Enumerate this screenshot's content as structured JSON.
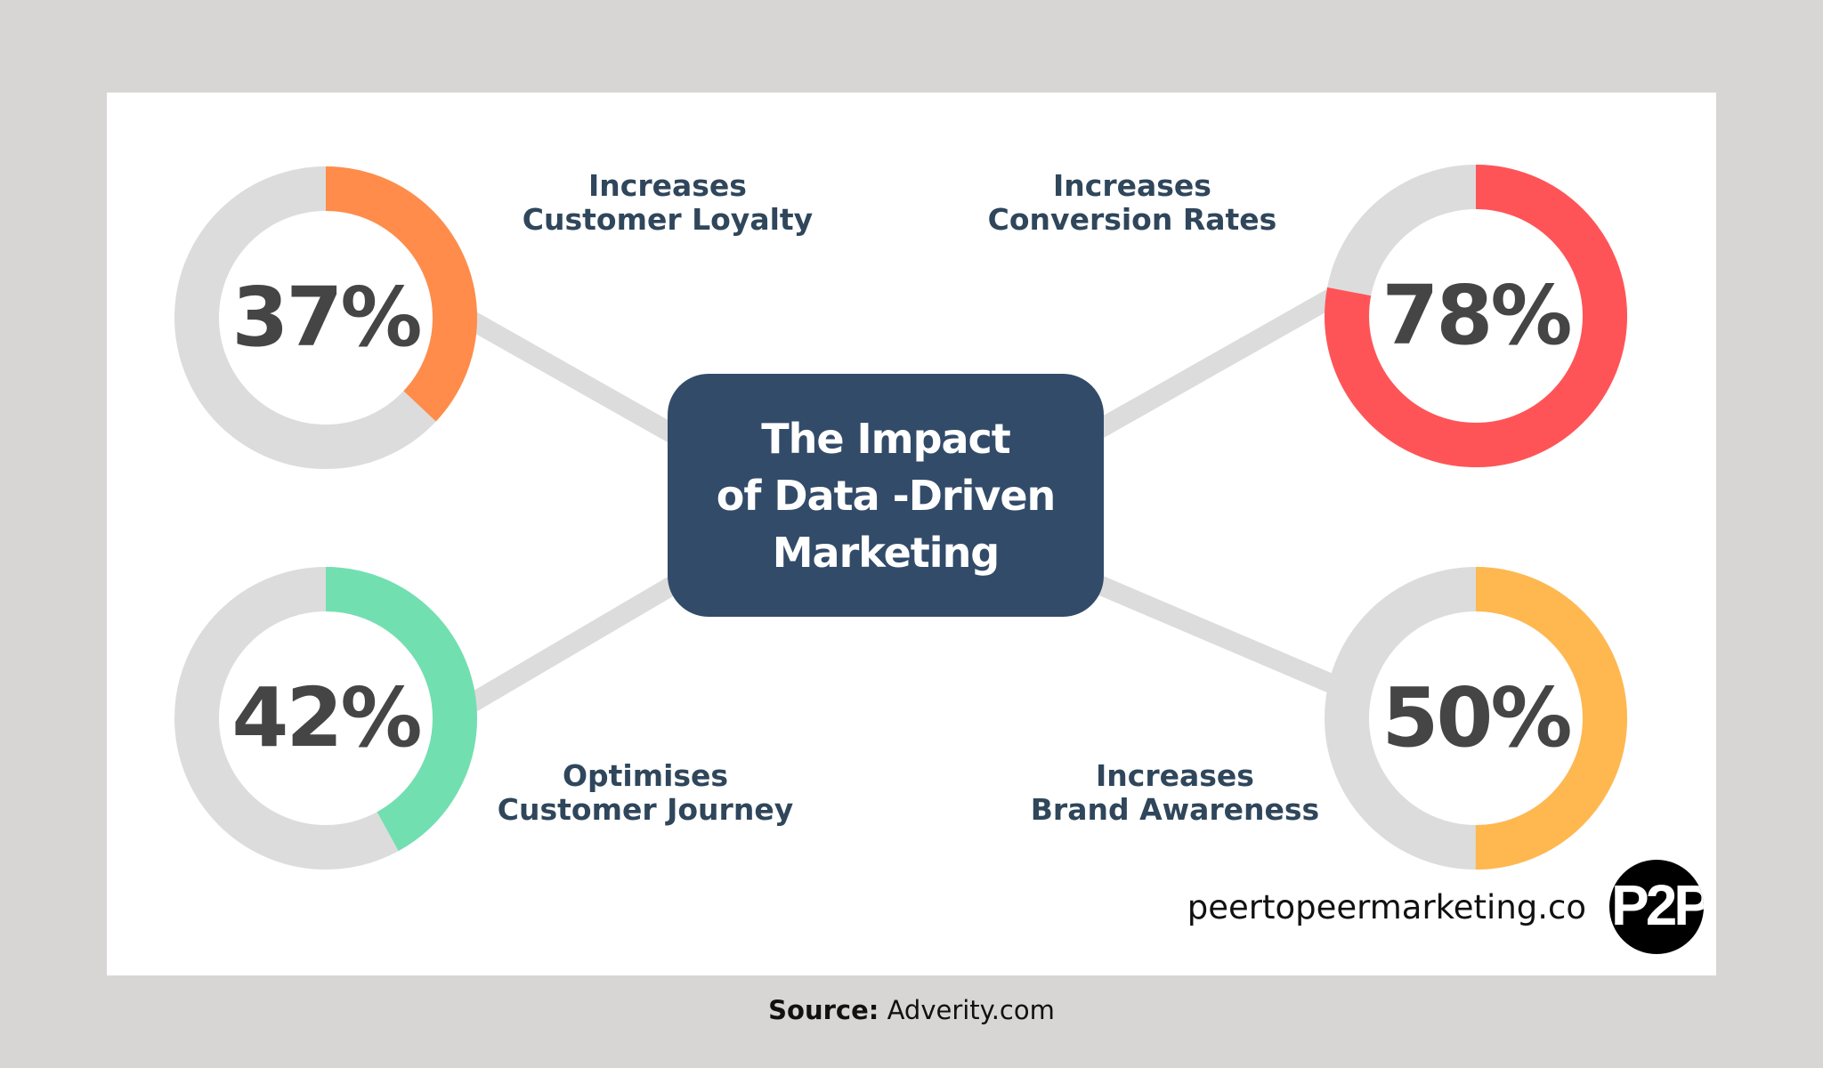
{
  "title": "The Impact of Data -Driven Marketing",
  "title_lines": [
    "The Impact",
    "of Data -Driven",
    "Marketing"
  ],
  "colors": {
    "background": "#d7d6d4",
    "card": "#ffffff",
    "track": "#dcdcdc",
    "center_box": "#324b69",
    "label_text": "#2f465b",
    "percent_text": "#454545",
    "loyalty": "#ff8c4a",
    "conversion": "#ff5457",
    "journey": "#72dfb1",
    "awareness": "#ffb84f"
  },
  "stats": [
    {
      "id": "loyalty",
      "value": 37,
      "display": "37%",
      "label_lines": [
        "Increases",
        "Customer Loyalty"
      ],
      "color": "#ff8c4a"
    },
    {
      "id": "conversion",
      "value": 78,
      "display": "78%",
      "label_lines": [
        "Increases",
        "Conversion Rates"
      ],
      "color": "#ff5457"
    },
    {
      "id": "journey",
      "value": 42,
      "display": "42%",
      "label_lines": [
        "Optimises",
        "Customer Journey"
      ],
      "color": "#72dfb1"
    },
    {
      "id": "awareness",
      "value": 50,
      "display": "50%",
      "label_lines": [
        "Increases",
        "Brand Awareness"
      ],
      "color": "#ffb84f"
    }
  ],
  "footer": {
    "url": "peertopeermarketing.co",
    "logo_text": "P2P",
    "source_label": "Source:",
    "source_value": " Adverity.com"
  },
  "chart_data": {
    "type": "pie",
    "subtype": "donut-gauges",
    "title": "The Impact of Data -Driven Marketing",
    "categories": [
      "Increases Customer Loyalty",
      "Increases Conversion Rates",
      "Optimises Customer Journey",
      "Increases Brand Awareness"
    ],
    "values": [
      37,
      78,
      42,
      50
    ],
    "unit": "%",
    "max": 100,
    "colors": [
      "#ff8c4a",
      "#ff5457",
      "#72dfb1",
      "#ffb84f"
    ],
    "source": "Adverity.com",
    "annotations": [
      "peertopeermarketing.co"
    ]
  }
}
